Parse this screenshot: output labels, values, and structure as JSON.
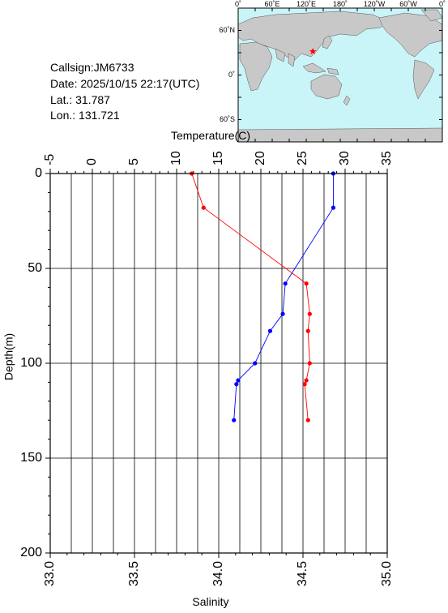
{
  "info": {
    "callsign": "Callsign:JM6733",
    "date": "Date:  2025/10/15 22:17(UTC)",
    "lat": "Lat.:  31.787",
    "lon": "Lon.:  131.721"
  },
  "map": {
    "lon_labels": [
      "0˚",
      "60˚E",
      "120˚E",
      "180˚",
      "120˚W",
      "60˚W",
      "0˚"
    ],
    "lat_labels": [
      "60˚N",
      "0˚",
      "60˚S"
    ],
    "station": {
      "lat": 31.787,
      "lon": 131.721
    },
    "ocean_color": "#c9f4f8",
    "land_color": "#c8c8c8",
    "marker_color": "#ff0000"
  },
  "chart_data": {
    "type": "line",
    "top_axis": {
      "label": "Temperature(C)",
      "range": [
        -5,
        35
      ],
      "ticks": [
        "-5",
        "0",
        "5",
        "10",
        "15",
        "20",
        "25",
        "30",
        "35"
      ]
    },
    "bottom_axis": {
      "label": "Salinity",
      "range": [
        33.0,
        35.0
      ],
      "ticks": [
        "33.0",
        "33.5",
        "34.0",
        "34.5",
        "35.0"
      ]
    },
    "y_axis": {
      "label": "Depth(m)",
      "range": [
        0,
        200
      ],
      "inverted": true,
      "ticks": [
        "0",
        "50",
        "100",
        "150",
        "200"
      ]
    },
    "grid": true,
    "series": [
      {
        "quantity": "temperature",
        "axis": "top",
        "color": "#0000ff",
        "points": [
          {
            "depth": 0,
            "value": 28.6
          },
          {
            "depth": 18,
            "value": 28.6
          },
          {
            "depth": 58,
            "value": 22.9
          },
          {
            "depth": 74,
            "value": 22.6
          },
          {
            "depth": 83,
            "value": 21.1
          },
          {
            "depth": 100,
            "value": 19.3
          },
          {
            "depth": 109,
            "value": 17.3
          },
          {
            "depth": 111,
            "value": 17.1
          },
          {
            "depth": 130,
            "value": 16.8
          }
        ]
      },
      {
        "quantity": "salinity",
        "axis": "bottom",
        "color": "#ff0000",
        "points": [
          {
            "depth": 0,
            "value": 33.84
          },
          {
            "depth": 18,
            "value": 33.91
          },
          {
            "depth": 58,
            "value": 34.52
          },
          {
            "depth": 74,
            "value": 34.54
          },
          {
            "depth": 83,
            "value": 34.53
          },
          {
            "depth": 100,
            "value": 34.54
          },
          {
            "depth": 109,
            "value": 34.52
          },
          {
            "depth": 111,
            "value": 34.51
          },
          {
            "depth": 130,
            "value": 34.53
          }
        ]
      }
    ]
  }
}
